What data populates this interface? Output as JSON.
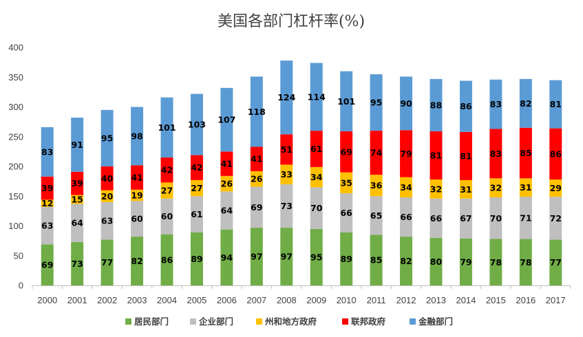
{
  "chart_data": {
    "type": "bar",
    "stacked": true,
    "title": "美国各部门杠杆率(%)",
    "xlabel": "",
    "ylabel": "",
    "ylim": [
      0,
      400
    ],
    "yticks": [
      0,
      50,
      100,
      150,
      200,
      250,
      300,
      350,
      400
    ],
    "grid": false,
    "legend_position": "bottom",
    "categories": [
      "2000",
      "2001",
      "2002",
      "2003",
      "2004",
      "2005",
      "2006",
      "2007",
      "2008",
      "2009",
      "2010",
      "2011",
      "2012",
      "2013",
      "2014",
      "2015",
      "2016",
      "2017"
    ],
    "series": [
      {
        "name": "居民部门",
        "color": "#70ad47",
        "values": [
          69,
          73,
          77,
          82,
          86,
          89,
          94,
          97,
          97,
          95,
          89,
          85,
          82,
          80,
          79,
          78,
          78,
          77
        ]
      },
      {
        "name": "企业部门",
        "color": "#bfbfbf",
        "values": [
          63,
          64,
          63,
          60,
          60,
          61,
          64,
          69,
          73,
          70,
          66,
          65,
          66,
          66,
          67,
          70,
          71,
          72
        ]
      },
      {
        "name": "州和地方政府",
        "color": "#ffc000",
        "values": [
          12,
          15,
          20,
          19,
          27,
          27,
          26,
          26,
          33,
          34,
          35,
          36,
          34,
          32,
          31,
          32,
          31,
          29
        ]
      },
      {
        "name": "联邦政府",
        "color": "#ff0000",
        "values": [
          39,
          39,
          40,
          41,
          42,
          42,
          41,
          41,
          51,
          61,
          69,
          74,
          79,
          81,
          81,
          83,
          85,
          86
        ]
      },
      {
        "name": "金融部门",
        "color": "#5b9bd5",
        "values": [
          83,
          91,
          95,
          98,
          101,
          103,
          107,
          118,
          124,
          114,
          101,
          95,
          90,
          88,
          86,
          83,
          82,
          81
        ]
      }
    ]
  }
}
